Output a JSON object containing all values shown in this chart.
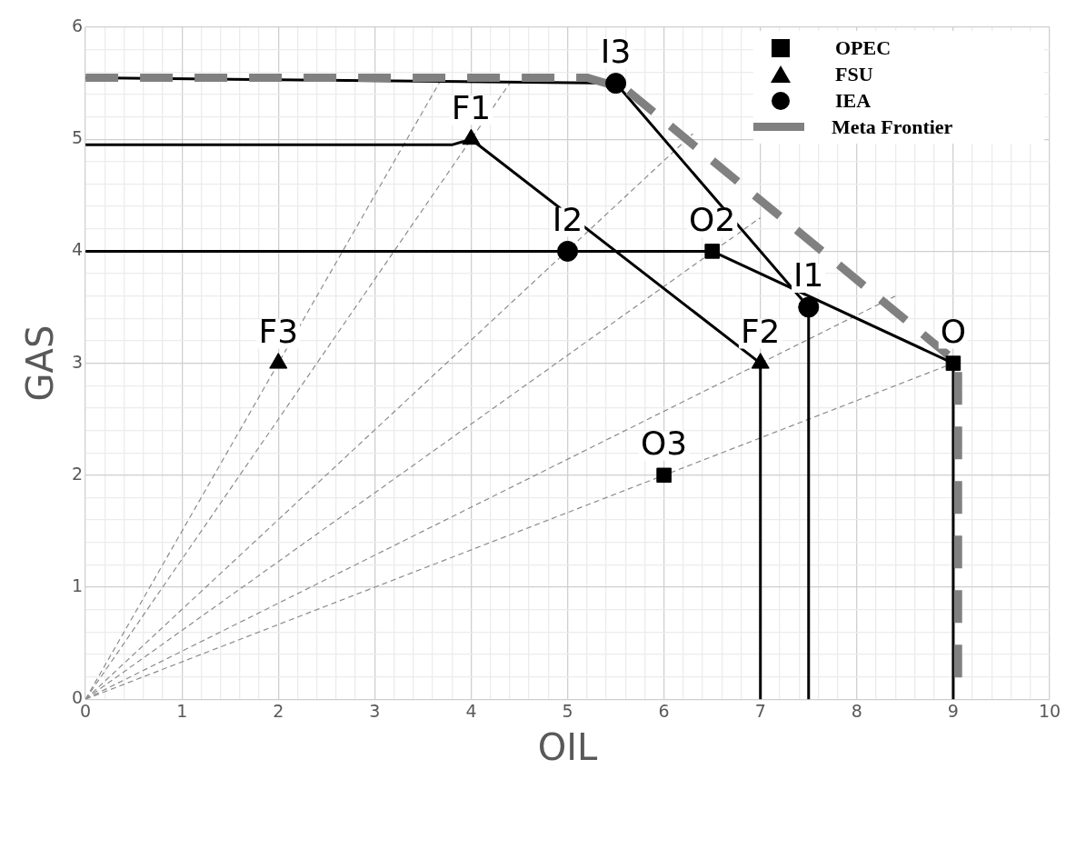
{
  "chart_data": {
    "type": "scatter",
    "xlabel": "OIL",
    "ylabel": "GAS",
    "xlim": [
      0,
      10
    ],
    "ylim": [
      0,
      6
    ],
    "xticks": [
      0,
      {
        "value": 0.2,
        "label": null
      },
      {
        "value": 0.4,
        "label": null
      },
      {
        "value": 0.6,
        "label": null
      },
      {
        "value": 0.8,
        "label": null
      },
      1,
      {
        "value": 1.2,
        "label": null
      },
      {
        "value": 1.4,
        "label": null
      },
      {
        "value": 1.6,
        "label": null
      },
      {
        "value": 1.8,
        "label": null
      },
      2,
      {
        "value": 2.2,
        "label": null
      },
      {
        "value": 2.4,
        "label": null
      },
      {
        "value": 2.6,
        "label": null
      },
      {
        "value": 2.8,
        "label": null
      },
      3,
      {
        "value": 3.2,
        "label": null
      },
      {
        "value": 3.4,
        "label": null
      },
      {
        "value": 3.6,
        "label": null
      },
      {
        "value": 3.8,
        "label": null
      },
      4,
      {
        "value": 4.2,
        "label": null
      },
      {
        "value": 4.4,
        "label": null
      },
      {
        "value": 4.6,
        "label": null
      },
      {
        "value": 4.8,
        "label": null
      },
      5,
      {
        "value": 5.2,
        "label": null
      },
      {
        "value": 5.4,
        "label": null
      },
      {
        "value": 5.6,
        "label": null
      },
      {
        "value": 5.8,
        "label": null
      },
      6,
      {
        "value": 6.2,
        "label": null
      },
      {
        "value": 6.4,
        "label": null
      },
      {
        "value": 6.6,
        "label": null
      },
      {
        "value": 6.8,
        "label": null
      },
      7,
      {
        "value": 7.2,
        "label": null
      },
      {
        "value": 7.4,
        "label": null
      },
      {
        "value": 7.6,
        "label": null
      },
      {
        "value": 7.8,
        "label": null
      },
      8,
      {
        "value": 8.2,
        "label": null
      },
      {
        "value": 8.4,
        "label": null
      },
      {
        "value": 8.6,
        "label": null
      },
      {
        "value": 8.8,
        "label": null
      },
      9,
      {
        "value": 9.2,
        "label": null
      },
      {
        "value": 9.4,
        "label": null
      },
      {
        "value": 9.6,
        "label": null
      },
      {
        "value": 9.8,
        "label": null
      },
      10
    ],
    "yticks": [
      0,
      {
        "value": 0.2,
        "label": null
      },
      {
        "value": 0.4,
        "label": null
      },
      {
        "value": 0.6,
        "label": null
      },
      {
        "value": 0.8,
        "label": null
      },
      1,
      {
        "value": 1.2,
        "label": null
      },
      {
        "value": 1.4,
        "label": null
      },
      {
        "value": 1.6,
        "label": null
      },
      {
        "value": 1.8,
        "label": null
      },
      2,
      {
        "value": 2.2,
        "label": null
      },
      {
        "value": 2.4,
        "label": null
      },
      {
        "value": 2.6,
        "label": null
      },
      {
        "value": 2.8,
        "label": null
      },
      3,
      {
        "value": 3.2,
        "label": null
      },
      {
        "value": 3.4,
        "label": null
      },
      {
        "value": 3.6,
        "label": null
      },
      {
        "value": 3.8,
        "label": null
      },
      4,
      {
        "value": 4.2,
        "label": null
      },
      {
        "value": 4.4,
        "label": null
      },
      {
        "value": 4.6,
        "label": null
      },
      {
        "value": 4.8,
        "label": null
      },
      5,
      {
        "value": 5.2,
        "label": null
      },
      {
        "value": 5.4,
        "label": null
      },
      {
        "value": 5.6,
        "label": null
      },
      {
        "value": 5.8,
        "label": null
      },
      6
    ],
    "grid": true,
    "legend": "top right",
    "series": [
      {
        "name": "OPEC",
        "marker": "square",
        "color": "#000000",
        "x": [
          9,
          6.5,
          6
        ],
        "values": [
          3,
          4,
          2
        ]
      },
      {
        "name": "FSU",
        "marker": "triangle",
        "color": "#000000",
        "x": [
          4,
          7,
          2
        ],
        "values": [
          5,
          3,
          3
        ]
      },
      {
        "name": "IEA",
        "marker": "circle",
        "color": "#000000",
        "x": [
          7.5,
          5,
          5.5
        ],
        "values": [
          3.5,
          4,
          5.5
        ]
      },
      {
        "name": "Meta Frontier",
        "type": "line",
        "line_style": "dashed",
        "color": "#808080",
        "x": [
          0,
          5.2,
          5.6,
          9.05,
          9.05
        ],
        "values": [
          5.55,
          5.55,
          5.45,
          3,
          0
        ]
      },
      {
        "type": "line",
        "line_style": "solid",
        "color": "#000000",
        "x": [
          0,
          6.5,
          9,
          9
        ],
        "values": [
          4,
          4,
          3,
          0
        ]
      },
      {
        "type": "line",
        "line_style": "solid",
        "color": "#000000",
        "x": [
          0,
          3.8,
          4,
          7,
          7
        ],
        "values": [
          4.95,
          4.95,
          5,
          3,
          0
        ]
      },
      {
        "type": "line",
        "line_style": "solid",
        "color": "#000000",
        "x": [
          0,
          5.5,
          7.5,
          7.5
        ],
        "values": [
          5.55,
          5.5,
          3.5,
          0
        ]
      },
      {
        "type": "line",
        "line_style": "dashed",
        "color": "#8c8c8c",
        "x": [
          0,
          3.7
        ],
        "values": [
          0,
          5.55
        ]
      },
      {
        "type": "line",
        "line_style": "dashed",
        "color": "#8c8c8c",
        "x": [
          0,
          4.4
        ],
        "values": [
          0,
          5.5
        ]
      },
      {
        "type": "line",
        "line_style": "dashed",
        "color": "#8c8c8c",
        "x": [
          0,
          6.3
        ],
        "values": [
          0,
          5.05
        ]
      },
      {
        "type": "line",
        "line_style": "dashed",
        "color": "#8c8c8c",
        "x": [
          0,
          7
        ],
        "values": [
          0,
          4.3
        ]
      },
      {
        "type": "line",
        "line_style": "dashed",
        "color": "#8c8c8c",
        "x": [
          0,
          8.4
        ],
        "values": [
          0,
          3.6
        ]
      },
      {
        "type": "line",
        "line_style": "dashed",
        "color": "#8c8c8c",
        "x": [
          0,
          9
        ],
        "values": [
          0,
          3
        ]
      }
    ],
    "annotations": [
      {
        "text": "O",
        "x": 9,
        "y": 3
      },
      {
        "text": "O2",
        "x": 6.5,
        "y": 4
      },
      {
        "text": "O3",
        "x": 6,
        "y": 2
      },
      {
        "text": "F1",
        "x": 4,
        "y": 5
      },
      {
        "text": "F2",
        "x": 7,
        "y": 3
      },
      {
        "text": "F3",
        "x": 2,
        "y": 3
      },
      {
        "text": "I1",
        "x": 7.5,
        "y": 3.5
      },
      {
        "text": "I2",
        "x": 5,
        "y": 4
      },
      {
        "text": "I3",
        "x": 5.5,
        "y": 5.5
      }
    ]
  }
}
